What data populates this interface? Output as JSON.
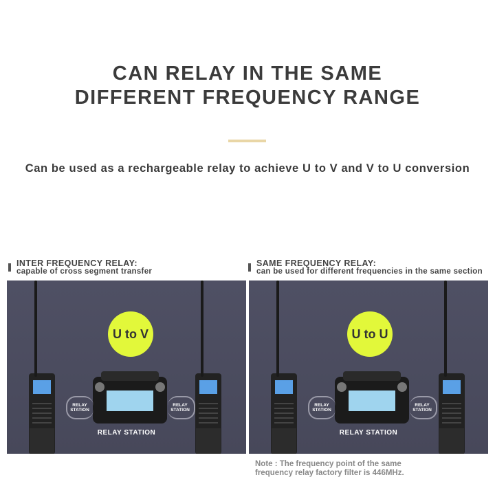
{
  "title": {
    "line1": "CAN RELAY IN THE SAME",
    "line2": "DIFFERENT FREQUENCY RANGE"
  },
  "subtitle": "Can be used as a rechargeable relay to achieve U to V and V to U conversion",
  "panels": [
    {
      "heading": "INTER FREQUENCY RELAY:",
      "subheading": "capable of cross segment transfer",
      "badge": "U to V",
      "side_label": "RELAY STATION",
      "station_label": "RELAY STATION"
    },
    {
      "heading": "SAME FREQUENCY RELAY:",
      "subheading": "can be used for different frequencies in the same section",
      "badge": "U to U",
      "side_label": "RELAY STATION",
      "station_label": "RELAY STATION"
    }
  ],
  "note": {
    "line1": "Note :  The frequency point of the same",
    "line2": "frequency relay factory filter is 446MHz."
  },
  "colors": {
    "badge": "#e2f83a",
    "panel": "#4b4c5f",
    "accent_bar": "#e9d6a6"
  }
}
